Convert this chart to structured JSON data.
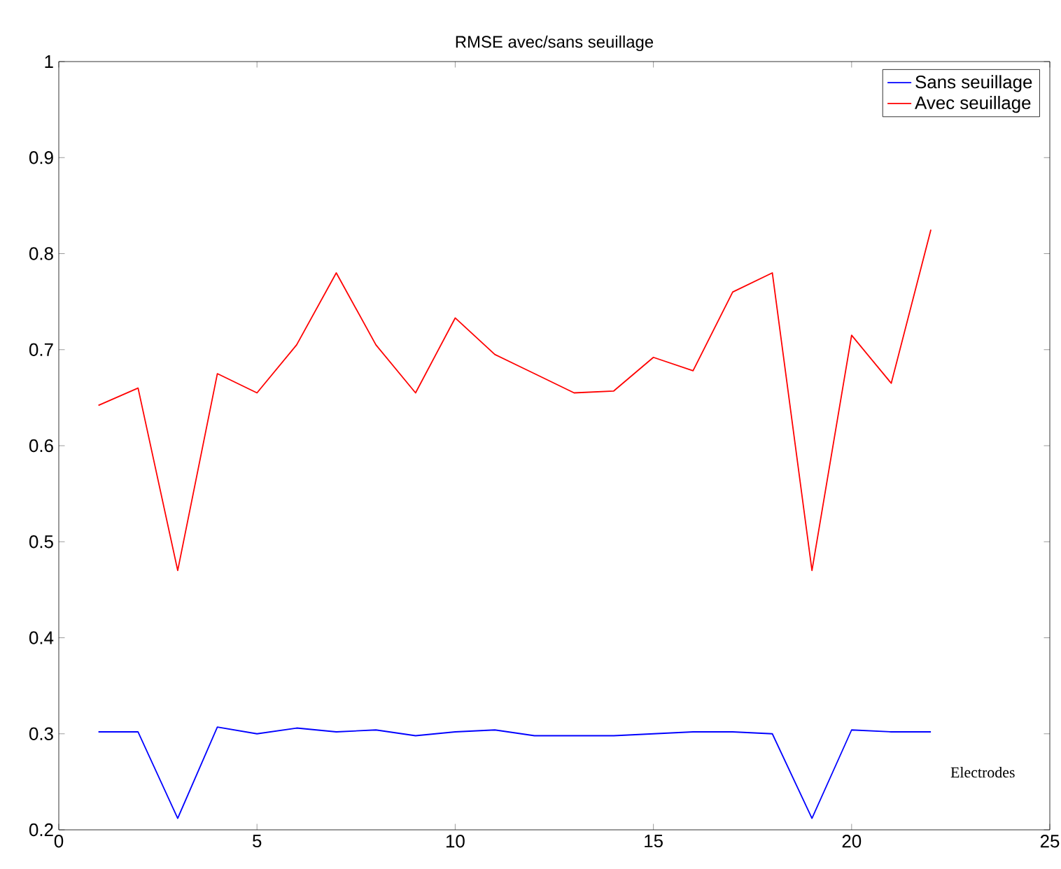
{
  "chart_data": {
    "type": "line",
    "title": "RMSE avec/sans seuillage",
    "x": [
      1,
      2,
      3,
      4,
      5,
      6,
      7,
      8,
      9,
      10,
      11,
      12,
      13,
      14,
      15,
      16,
      17,
      18,
      19,
      20,
      21,
      22
    ],
    "series": [
      {
        "name": "Sans seuillage",
        "color": "#0000ff",
        "values": [
          0.302,
          0.302,
          0.212,
          0.307,
          0.3,
          0.306,
          0.302,
          0.304,
          0.298,
          0.302,
          0.304,
          0.298,
          0.298,
          0.298,
          0.3,
          0.302,
          0.302,
          0.3,
          0.212,
          0.304,
          0.302,
          0.302
        ]
      },
      {
        "name": "Avec seuillage",
        "color": "#ff0000",
        "values": [
          0.642,
          0.66,
          0.47,
          0.675,
          0.655,
          0.705,
          0.78,
          0.705,
          0.655,
          0.733,
          0.695,
          0.675,
          0.655,
          0.657,
          0.692,
          0.678,
          0.76,
          0.78,
          0.47,
          0.715,
          0.665,
          0.825
        ]
      }
    ],
    "xlim": [
      0,
      25
    ],
    "xticks": [
      0,
      5,
      10,
      15,
      20,
      25
    ],
    "ylim": [
      0.2,
      1
    ],
    "yticks": [
      0.2,
      0.3,
      0.4,
      0.5,
      0.6,
      0.7,
      0.8,
      0.9,
      1
    ],
    "legend": "top right",
    "grid": false,
    "marker": "none",
    "line_style": "solid",
    "annotations": [
      "Electrodes"
    ]
  }
}
